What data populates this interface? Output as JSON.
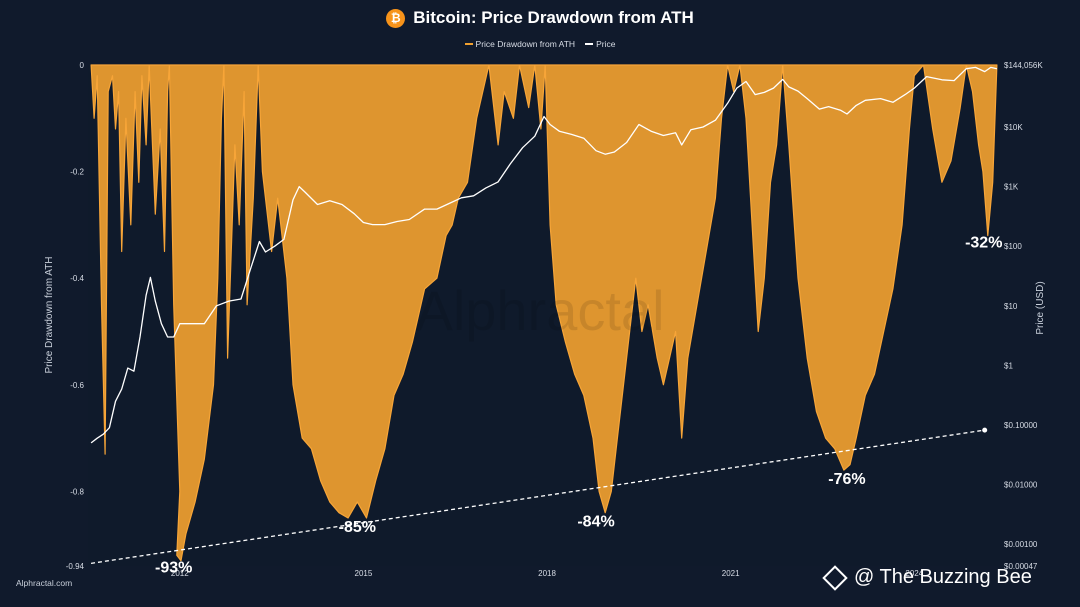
{
  "header": {
    "title": "Bitcoin: Price Drawdown from ATH",
    "icon": "bitcoin-icon",
    "icon_glyph": "₿"
  },
  "legend": [
    {
      "label": "Price Drawdown from ATH",
      "color": "#f0a030"
    },
    {
      "label": "Price",
      "color": "#ffffff"
    }
  ],
  "footer": {
    "credit": "Alphractal.com",
    "watermark_text": "@ The Buzzing Bee",
    "watermark_icon": "diamond-icon"
  },
  "background_watermark": "Alphractal",
  "colors": {
    "background": "#101a2c",
    "drawdown_fill": "#f0a030",
    "price_line": "#ffffff"
  },
  "chart_data": {
    "type": "area",
    "ylabel_left": "Price Drawdown from ATH",
    "ylabel_right": "Price (USD)",
    "y_left_ticks": [
      "0",
      "-0.2",
      "-0.4",
      "-0.6",
      "-0.8",
      "-0.94"
    ],
    "y_left_values": [
      0,
      -0.2,
      -0.4,
      -0.6,
      -0.8,
      -0.94
    ],
    "y_left_range": [
      -0.94,
      0
    ],
    "y_right_ticks": [
      "$144,056K",
      "$10K",
      "$1K",
      "$100",
      "$10",
      "$1",
      "$0.10000",
      "$0.01000",
      "$0.00100",
      "$0.00047"
    ],
    "y_right_values": [
      144056000,
      10000,
      1000,
      100,
      10,
      1,
      0.1,
      0.01,
      0.001,
      0.00047
    ],
    "y_right_scale": "log",
    "x_ticks": [
      "2012",
      "2015",
      "2018",
      "2021",
      "2024"
    ],
    "x_tick_values": [
      2012,
      2015,
      2018,
      2021,
      2024
    ],
    "x_range": [
      2010.5,
      2025.4
    ],
    "annotations": [
      {
        "text": "-93%",
        "x": 2011.9,
        "y": -0.93
      },
      {
        "text": "-85%",
        "x": 2014.9,
        "y": -0.85
      },
      {
        "text": "-84%",
        "x": 2018.8,
        "y": -0.84
      },
      {
        "text": "-76%",
        "x": 2022.9,
        "y": -0.76
      },
      {
        "text": "-32%",
        "x": 2025.2,
        "y": -0.32
      }
    ],
    "trendline": [
      [
        2010.55,
        -0.935
      ],
      [
        2025.15,
        -0.685
      ]
    ],
    "series": [
      {
        "name": "Price Drawdown from ATH",
        "points": [
          [
            2010.55,
            0
          ],
          [
            2010.6,
            -0.1
          ],
          [
            2010.65,
            -0.02
          ],
          [
            2010.72,
            -0.45
          ],
          [
            2010.78,
            -0.73
          ],
          [
            2010.83,
            -0.05
          ],
          [
            2010.9,
            -0.02
          ],
          [
            2010.95,
            -0.12
          ],
          [
            2011.0,
            -0.05
          ],
          [
            2011.05,
            -0.35
          ],
          [
            2011.12,
            -0.1
          ],
          [
            2011.2,
            -0.3
          ],
          [
            2011.27,
            -0.05
          ],
          [
            2011.33,
            -0.22
          ],
          [
            2011.38,
            -0.02
          ],
          [
            2011.45,
            -0.15
          ],
          [
            2011.5,
            -0.0
          ],
          [
            2011.6,
            -0.28
          ],
          [
            2011.68,
            -0.12
          ],
          [
            2011.75,
            -0.35
          ],
          [
            2011.8,
            -0.05
          ],
          [
            2011.83,
            0
          ],
          [
            2011.9,
            -0.45
          ],
          [
            2012.0,
            -0.8
          ],
          [
            2011.95,
            -0.92
          ],
          [
            2012.02,
            -0.93
          ],
          [
            2012.1,
            -0.88
          ],
          [
            2012.25,
            -0.82
          ],
          [
            2012.4,
            -0.74
          ],
          [
            2012.55,
            -0.6
          ],
          [
            2012.62,
            -0.4
          ],
          [
            2012.68,
            -0.1
          ],
          [
            2012.72,
            0
          ],
          [
            2012.78,
            -0.55
          ],
          [
            2012.9,
            -0.15
          ],
          [
            2012.97,
            -0.3
          ],
          [
            2013.05,
            -0.05
          ],
          [
            2013.1,
            -0.45
          ],
          [
            2013.2,
            -0.25
          ],
          [
            2013.28,
            0
          ],
          [
            2013.35,
            -0.2
          ],
          [
            2013.5,
            -0.35
          ],
          [
            2013.6,
            -0.25
          ],
          [
            2013.75,
            -0.4
          ],
          [
            2013.85,
            -0.6
          ],
          [
            2014.0,
            -0.7
          ],
          [
            2014.15,
            -0.72
          ],
          [
            2014.3,
            -0.78
          ],
          [
            2014.45,
            -0.82
          ],
          [
            2014.6,
            -0.84
          ],
          [
            2014.75,
            -0.85
          ],
          [
            2014.9,
            -0.82
          ],
          [
            2015.05,
            -0.85
          ],
          [
            2015.2,
            -0.78
          ],
          [
            2015.35,
            -0.72
          ],
          [
            2015.5,
            -0.62
          ],
          [
            2015.65,
            -0.58
          ],
          [
            2015.8,
            -0.52
          ],
          [
            2016.0,
            -0.42
          ],
          [
            2016.2,
            -0.4
          ],
          [
            2016.35,
            -0.32
          ],
          [
            2016.45,
            -0.3
          ],
          [
            2016.55,
            -0.25
          ],
          [
            2016.7,
            -0.22
          ],
          [
            2016.85,
            -0.1
          ],
          [
            2016.95,
            -0.05
          ],
          [
            2017.05,
            0
          ],
          [
            2017.2,
            -0.15
          ],
          [
            2017.3,
            -0.05
          ],
          [
            2017.45,
            -0.1
          ],
          [
            2017.55,
            0
          ],
          [
            2017.7,
            -0.08
          ],
          [
            2017.8,
            0
          ],
          [
            2017.9,
            -0.12
          ],
          [
            2017.97,
            0
          ],
          [
            2018.05,
            -0.3
          ],
          [
            2018.15,
            -0.45
          ],
          [
            2018.3,
            -0.52
          ],
          [
            2018.45,
            -0.58
          ],
          [
            2018.6,
            -0.62
          ],
          [
            2018.75,
            -0.7
          ],
          [
            2018.85,
            -0.8
          ],
          [
            2018.95,
            -0.84
          ],
          [
            2019.05,
            -0.8
          ],
          [
            2019.15,
            -0.7
          ],
          [
            2019.3,
            -0.55
          ],
          [
            2019.45,
            -0.4
          ],
          [
            2019.55,
            -0.5
          ],
          [
            2019.65,
            -0.45
          ],
          [
            2019.8,
            -0.55
          ],
          [
            2019.9,
            -0.6
          ],
          [
            2020.0,
            -0.55
          ],
          [
            2020.1,
            -0.5
          ],
          [
            2020.2,
            -0.7
          ],
          [
            2020.3,
            -0.55
          ],
          [
            2020.45,
            -0.45
          ],
          [
            2020.6,
            -0.35
          ],
          [
            2020.75,
            -0.25
          ],
          [
            2020.85,
            -0.1
          ],
          [
            2020.95,
            0
          ],
          [
            2021.05,
            -0.05
          ],
          [
            2021.15,
            0
          ],
          [
            2021.25,
            -0.1
          ],
          [
            2021.35,
            -0.3
          ],
          [
            2021.45,
            -0.5
          ],
          [
            2021.55,
            -0.4
          ],
          [
            2021.65,
            -0.22
          ],
          [
            2021.75,
            -0.15
          ],
          [
            2021.85,
            0
          ],
          [
            2021.95,
            -0.15
          ],
          [
            2022.1,
            -0.4
          ],
          [
            2022.25,
            -0.55
          ],
          [
            2022.4,
            -0.65
          ],
          [
            2022.55,
            -0.7
          ],
          [
            2022.7,
            -0.72
          ],
          [
            2022.85,
            -0.76
          ],
          [
            2022.95,
            -0.75
          ],
          [
            2023.05,
            -0.7
          ],
          [
            2023.2,
            -0.62
          ],
          [
            2023.35,
            -0.58
          ],
          [
            2023.5,
            -0.5
          ],
          [
            2023.65,
            -0.42
          ],
          [
            2023.8,
            -0.3
          ],
          [
            2023.92,
            -0.12
          ],
          [
            2024.0,
            -0.02
          ],
          [
            2024.15,
            0
          ],
          [
            2024.3,
            -0.12
          ],
          [
            2024.45,
            -0.22
          ],
          [
            2024.6,
            -0.18
          ],
          [
            2024.75,
            -0.08
          ],
          [
            2024.85,
            0
          ],
          [
            2024.95,
            -0.05
          ],
          [
            2025.05,
            -0.15
          ],
          [
            2025.12,
            -0.2
          ],
          [
            2025.2,
            -0.32
          ],
          [
            2025.28,
            -0.22
          ],
          [
            2025.35,
            0
          ]
        ]
      },
      {
        "name": "Price",
        "points": [
          [
            2010.55,
            0.05
          ],
          [
            2010.65,
            0.06
          ],
          [
            2010.75,
            0.07
          ],
          [
            2010.85,
            0.09
          ],
          [
            2010.95,
            0.25
          ],
          [
            2011.05,
            0.4
          ],
          [
            2011.15,
            0.9
          ],
          [
            2011.25,
            0.8
          ],
          [
            2011.35,
            3
          ],
          [
            2011.45,
            15
          ],
          [
            2011.52,
            30
          ],
          [
            2011.6,
            12
          ],
          [
            2011.7,
            5
          ],
          [
            2011.8,
            3
          ],
          [
            2011.9,
            3
          ],
          [
            2012.0,
            5
          ],
          [
            2012.2,
            5
          ],
          [
            2012.4,
            5
          ],
          [
            2012.6,
            10
          ],
          [
            2012.8,
            12
          ],
          [
            2013.0,
            13
          ],
          [
            2013.15,
            40
          ],
          [
            2013.3,
            120
          ],
          [
            2013.4,
            80
          ],
          [
            2013.55,
            100
          ],
          [
            2013.7,
            130
          ],
          [
            2013.85,
            600
          ],
          [
            2013.95,
            1000
          ],
          [
            2014.05,
            800
          ],
          [
            2014.25,
            500
          ],
          [
            2014.45,
            580
          ],
          [
            2014.65,
            500
          ],
          [
            2014.85,
            350
          ],
          [
            2015.0,
            250
          ],
          [
            2015.15,
            230
          ],
          [
            2015.35,
            230
          ],
          [
            2015.55,
            260
          ],
          [
            2015.75,
            280
          ],
          [
            2016.0,
            420
          ],
          [
            2016.2,
            420
          ],
          [
            2016.4,
            520
          ],
          [
            2016.6,
            650
          ],
          [
            2016.8,
            700
          ],
          [
            2017.0,
            950
          ],
          [
            2017.2,
            1200
          ],
          [
            2017.4,
            2400
          ],
          [
            2017.6,
            4500
          ],
          [
            2017.8,
            7000
          ],
          [
            2017.95,
            15000
          ],
          [
            2018.05,
            11000
          ],
          [
            2018.2,
            8500
          ],
          [
            2018.4,
            7500
          ],
          [
            2018.6,
            6500
          ],
          [
            2018.8,
            4000
          ],
          [
            2018.95,
            3500
          ],
          [
            2019.1,
            3800
          ],
          [
            2019.3,
            5500
          ],
          [
            2019.5,
            11000
          ],
          [
            2019.7,
            8500
          ],
          [
            2019.9,
            7200
          ],
          [
            2020.1,
            8000
          ],
          [
            2020.2,
            5000
          ],
          [
            2020.35,
            9000
          ],
          [
            2020.55,
            10000
          ],
          [
            2020.75,
            13000
          ],
          [
            2020.95,
            25000
          ],
          [
            2021.1,
            45000
          ],
          [
            2021.25,
            58000
          ],
          [
            2021.4,
            35000
          ],
          [
            2021.55,
            38000
          ],
          [
            2021.7,
            45000
          ],
          [
            2021.85,
            63000
          ],
          [
            2021.95,
            47000
          ],
          [
            2022.1,
            40000
          ],
          [
            2022.25,
            30000
          ],
          [
            2022.45,
            20000
          ],
          [
            2022.6,
            22000
          ],
          [
            2022.8,
            19000
          ],
          [
            2022.9,
            16500
          ],
          [
            2023.05,
            23000
          ],
          [
            2023.2,
            28000
          ],
          [
            2023.45,
            30000
          ],
          [
            2023.65,
            26000
          ],
          [
            2023.85,
            35000
          ],
          [
            2024.0,
            45000
          ],
          [
            2024.2,
            70000
          ],
          [
            2024.45,
            62000
          ],
          [
            2024.65,
            60000
          ],
          [
            2024.85,
            95000
          ],
          [
            2025.0,
            100000
          ],
          [
            2025.15,
            85000
          ],
          [
            2025.25,
            100000
          ],
          [
            2025.35,
            95000
          ]
        ]
      }
    ]
  }
}
